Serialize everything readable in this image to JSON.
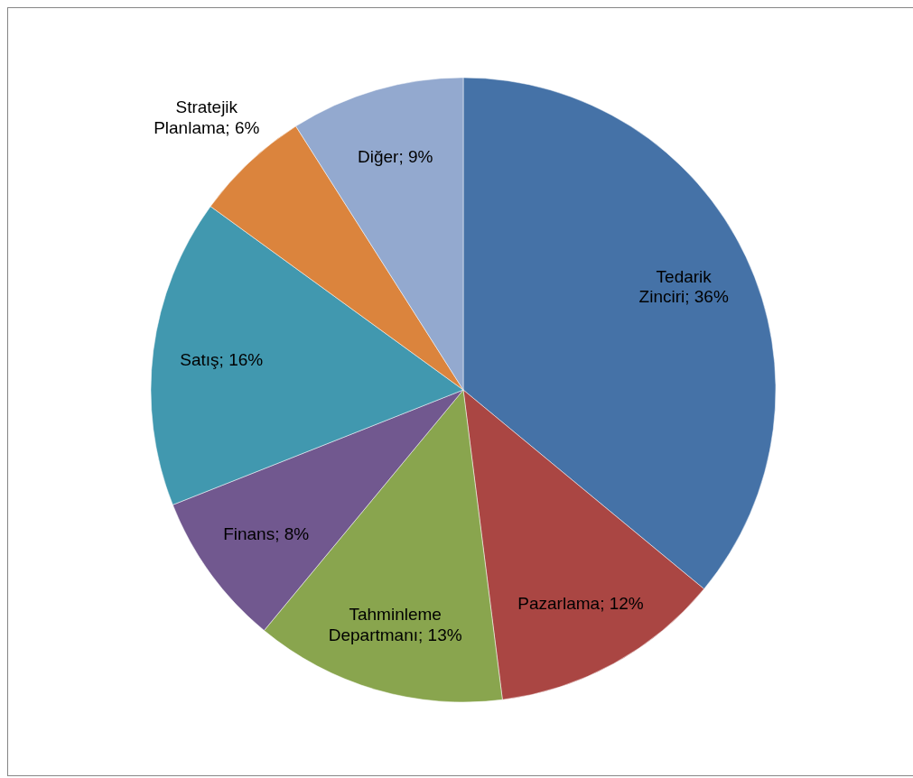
{
  "chart_data": {
    "type": "pie",
    "categories": [
      "Tedarik Zinciri",
      "Pazarlama",
      "Tahminleme Departmanı",
      "Finans",
      "Satış",
      "Stratejik Planlama",
      "Diğer"
    ],
    "values": [
      36,
      12,
      13,
      8,
      16,
      6,
      9
    ],
    "value_labels": [
      "36%",
      "12%",
      "13%",
      "8%",
      "16%",
      "6%",
      "9%"
    ],
    "colors": [
      "#4572a7",
      "#aa4643",
      "#89a54e",
      "#71588f",
      "#4198af",
      "#db843d",
      "#93a9cf"
    ]
  }
}
